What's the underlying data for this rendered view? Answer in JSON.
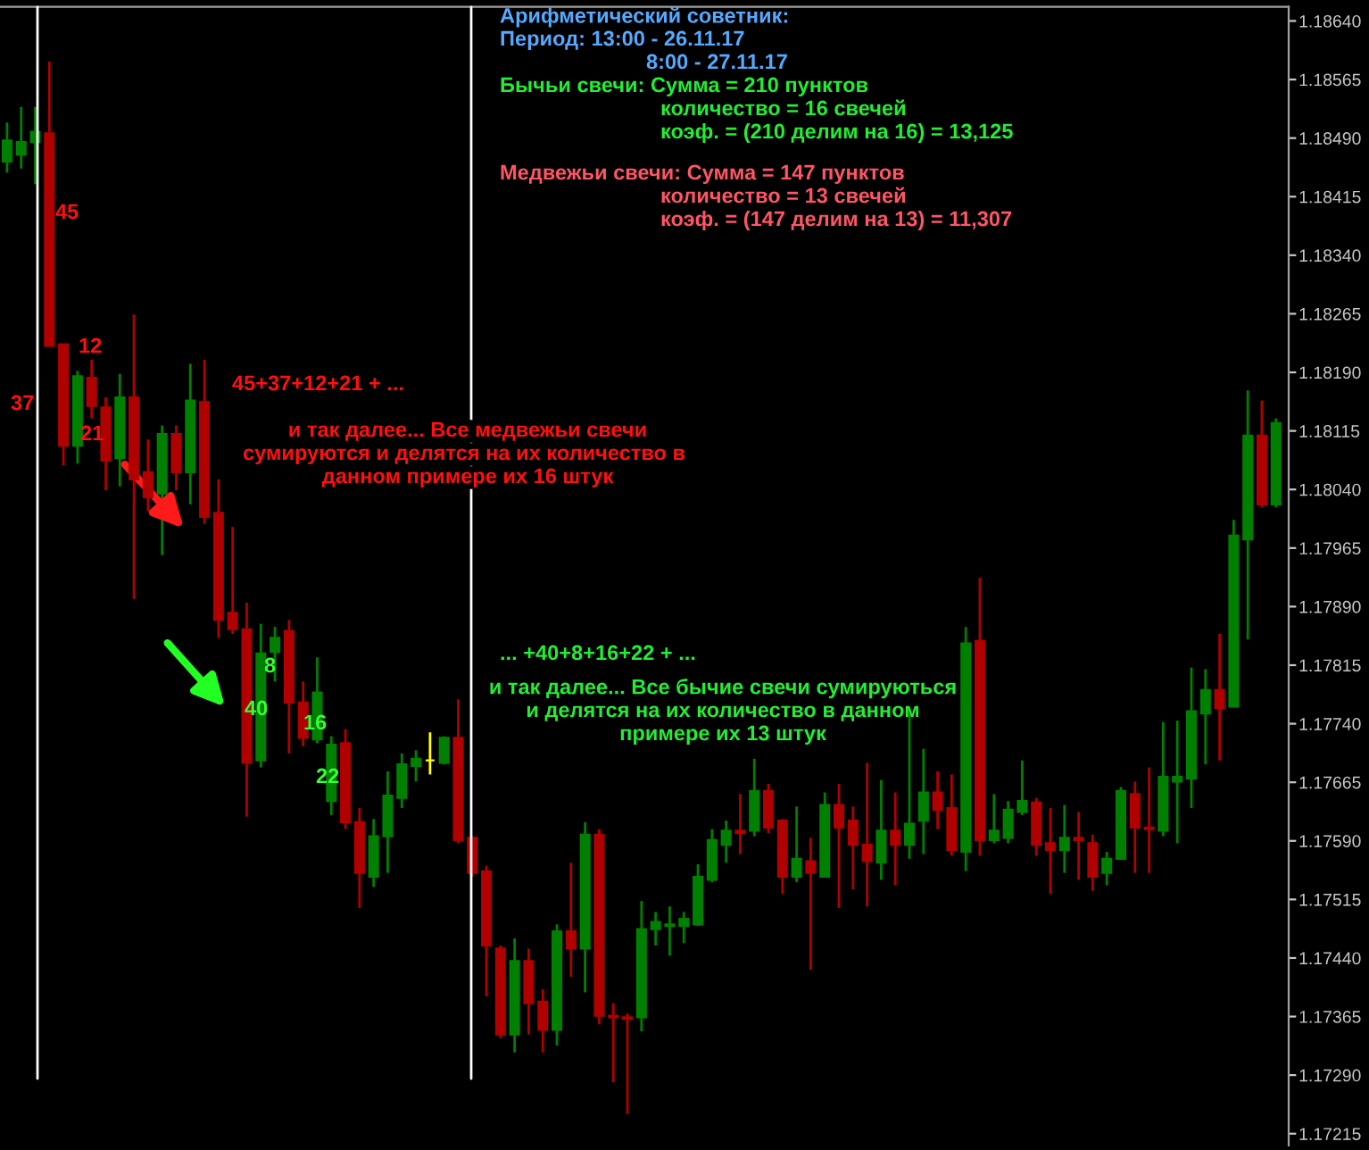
{
  "chart_data": {
    "type": "candlestick",
    "categories": [
      null,
      null,
      null,
      null,
      null,
      null,
      null,
      null,
      null,
      null,
      null,
      null,
      null,
      null,
      null,
      null,
      null,
      null,
      null,
      null,
      null,
      null,
      null,
      null,
      null,
      null,
      null,
      null,
      null,
      null,
      null,
      null,
      null,
      null,
      null,
      null,
      null,
      null,
      null,
      null,
      null,
      null,
      null,
      null,
      null,
      null,
      null,
      null,
      null,
      null,
      null,
      null,
      null,
      null,
      null,
      null,
      null,
      null,
      null,
      null,
      null,
      null,
      null,
      null,
      null,
      null,
      null,
      null,
      null,
      null,
      null,
      null,
      null,
      null,
      null,
      null,
      null,
      null,
      null,
      null,
      null,
      null,
      null,
      null,
      null,
      null,
      null,
      null,
      null,
      null,
      null
    ],
    "ohlc": [
      [
        1.1846,
        1.1851,
        1.18446,
        1.18487
      ],
      [
        1.18469,
        1.1853,
        1.18451,
        1.18485
      ],
      [
        1.18485,
        1.1853,
        1.18431,
        1.18498
      ],
      [
        1.18496,
        1.18588,
        1.18224,
        1.18224
      ],
      [
        1.18226,
        1.18226,
        1.18071,
        1.18096
      ],
      [
        1.18096,
        1.18192,
        1.18073,
        1.18185
      ],
      [
        1.18183,
        1.18206,
        1.18131,
        1.18147
      ],
      [
        1.18145,
        1.18158,
        1.18039,
        1.18077
      ],
      [
        1.1808,
        1.18188,
        1.18044,
        1.18158
      ],
      [
        1.18158,
        1.18264,
        1.179,
        1.18053
      ],
      [
        1.18062,
        1.18104,
        1.18012,
        1.1803
      ],
      [
        1.18035,
        1.18122,
        1.17956,
        1.18111
      ],
      [
        1.18111,
        1.18122,
        1.18039,
        1.18062
      ],
      [
        1.18062,
        1.18201,
        1.18021,
        1.18154
      ],
      [
        1.18152,
        1.18206,
        1.17996,
        1.18005
      ],
      [
        1.1801,
        1.18053,
        1.1785,
        1.17873
      ],
      [
        1.17882,
        1.17992,
        1.17855,
        1.17861
      ],
      [
        1.17861,
        1.17895,
        1.17621,
        1.1769
      ],
      [
        1.17693,
        1.17868,
        1.17684,
        1.1783
      ],
      [
        1.17832,
        1.17864,
        1.17794,
        1.1785
      ],
      [
        1.17859,
        1.17873,
        1.17702,
        1.17767
      ],
      [
        1.17767,
        1.17794,
        1.17711,
        1.17722
      ],
      [
        1.1772,
        1.17825,
        1.17715,
        1.1778
      ],
      [
        1.17641,
        1.17724,
        1.17623,
        1.17713
      ],
      [
        1.17715,
        1.17733,
        1.17605,
        1.17614
      ],
      [
        1.17614,
        1.17632,
        1.17504,
        1.17549
      ],
      [
        1.17544,
        1.17618,
        1.17531,
        1.17596
      ],
      [
        1.17596,
        1.17679,
        1.17549,
        1.17648
      ],
      [
        1.17645,
        1.17702,
        1.17632,
        1.17688
      ],
      [
        1.17686,
        1.17706,
        1.17666,
        1.17695
      ],
      [
        1.17693,
        1.17729,
        1.17675,
        1.17693
      ],
      [
        1.1769,
        1.17724,
        1.17688,
        1.17722
      ],
      [
        1.17722,
        1.17771,
        1.17587,
        1.17591
      ],
      [
        1.17594,
        1.17596,
        1.17544,
        1.17549
      ],
      [
        1.17551,
        1.17558,
        1.17391,
        1.17456
      ],
      [
        1.17452,
        1.17456,
        1.17337,
        1.17342
      ],
      [
        1.17342,
        1.17465,
        1.17319,
        1.17436
      ],
      [
        1.17436,
        1.17452,
        1.17342,
        1.17382
      ],
      [
        1.17384,
        1.174,
        1.17319,
        1.17348
      ],
      [
        1.17348,
        1.17483,
        1.17328,
        1.17474
      ],
      [
        1.17474,
        1.17562,
        1.17416,
        1.17452
      ],
      [
        1.17452,
        1.17614,
        1.17396,
        1.17598
      ],
      [
        1.17598,
        1.17605,
        1.17355,
        1.17366
      ],
      [
        1.17366,
        1.17382,
        1.17281,
        1.17364
      ],
      [
        1.17364,
        1.17369,
        1.1724,
        1.17362
      ],
      [
        1.17364,
        1.17513,
        1.17346,
        1.17477
      ],
      [
        1.17477,
        1.17499,
        1.17456,
        1.17486
      ],
      [
        1.17481,
        1.17506,
        1.17443,
        1.17483
      ],
      [
        1.17481,
        1.17499,
        1.17459,
        1.1749
      ],
      [
        1.17483,
        1.1756,
        1.17481,
        1.17544
      ],
      [
        1.1754,
        1.17605,
        1.17537,
        1.17591
      ],
      [
        1.17585,
        1.17616,
        1.17562,
        1.17603
      ],
      [
        1.17603,
        1.1765,
        1.17573,
        1.176
      ],
      [
        1.17603,
        1.17695,
        1.17596,
        1.17654
      ],
      [
        1.17654,
        1.17663,
        1.176,
        1.17607
      ],
      [
        1.17616,
        1.17618,
        1.17522,
        1.17544
      ],
      [
        1.17544,
        1.17634,
        1.17537,
        1.17567
      ],
      [
        1.17564,
        1.17594,
        1.17425,
        1.17549
      ],
      [
        1.17544,
        1.17652,
        1.17544,
        1.17636
      ],
      [
        1.17636,
        1.17663,
        1.17504,
        1.17607
      ],
      [
        1.17616,
        1.17634,
        1.17528,
        1.17585
      ],
      [
        1.17585,
        1.1769,
        1.17506,
        1.17564
      ],
      [
        1.17562,
        1.17668,
        1.1754,
        1.17603
      ],
      [
        1.17603,
        1.17652,
        1.17533,
        1.17585
      ],
      [
        1.17585,
        1.17758,
        1.17567,
        1.17612
      ],
      [
        1.17616,
        1.17708,
        1.17573,
        1.17652
      ],
      [
        1.17652,
        1.17679,
        1.17605,
        1.1763
      ],
      [
        1.17632,
        1.17675,
        1.17571,
        1.17578
      ],
      [
        1.17576,
        1.17864,
        1.17551,
        1.17843
      ],
      [
        1.17846,
        1.17927,
        1.17571,
        1.17591
      ],
      [
        1.17591,
        1.1765,
        1.17587,
        1.17603
      ],
      [
        1.17594,
        1.17641,
        1.17587,
        1.1763
      ],
      [
        1.17627,
        1.17693,
        1.17623,
        1.17641
      ],
      [
        1.17639,
        1.17645,
        1.17571,
        1.17585
      ],
      [
        1.17587,
        1.17632,
        1.17522,
        1.17578
      ],
      [
        1.17578,
        1.17636,
        1.17549,
        1.17594
      ],
      [
        1.17594,
        1.17627,
        1.1754,
        1.17591
      ],
      [
        1.17587,
        1.17598,
        1.17526,
        1.17544
      ],
      [
        1.17549,
        1.17576,
        1.17533,
        1.17567
      ],
      [
        1.17567,
        1.17659,
        1.17567,
        1.17654
      ],
      [
        1.1765,
        1.17666,
        1.17549,
        1.17607
      ],
      [
        1.17607,
        1.17684,
        1.17549,
        1.17605
      ],
      [
        1.17603,
        1.17742,
        1.17596,
        1.17672
      ],
      [
        1.17666,
        1.17744,
        1.17587,
        1.17672
      ],
      [
        1.1767,
        1.17812,
        1.17632,
        1.17756
      ],
      [
        1.17753,
        1.1781,
        1.17688,
        1.17783
      ],
      [
        1.17783,
        1.17855,
        1.17693,
        1.1776
      ],
      [
        1.17762,
        1.18001,
        1.17762,
        1.17981
      ],
      [
        1.17976,
        1.18167,
        1.17848,
        1.18109
      ],
      [
        1.18109,
        1.18154,
        1.18017,
        1.18021
      ],
      [
        1.18021,
        1.18131,
        1.18017,
        1.18125
      ]
    ],
    "colors": [
      "#008000",
      "#008000",
      "#008000",
      "#b00000",
      "#b00000",
      "#008000",
      "#b00000",
      "#b00000",
      "#008000",
      "#b00000",
      "#b00000",
      "#008000",
      "#b00000",
      "#008000",
      "#b00000",
      "#b00000",
      "#b00000",
      "#b00000",
      "#008000",
      "#008000",
      "#b00000",
      "#b00000",
      "#008000",
      "#008000",
      "#b00000",
      "#b00000",
      "#008000",
      "#008000",
      "#008000",
      "#008000",
      "#ffff00",
      "#008000",
      "#b00000",
      "#b00000",
      "#b00000",
      "#b00000",
      "#008000",
      "#b00000",
      "#b00000",
      "#008000",
      "#b00000",
      "#008000",
      "#b00000",
      "#b00000",
      "#b00000",
      "#008000",
      "#008000",
      "#008000",
      "#008000",
      "#008000",
      "#008000",
      "#008000",
      "#b00000",
      "#008000",
      "#b00000",
      "#b00000",
      "#008000",
      "#b00000",
      "#008000",
      "#b00000",
      "#b00000",
      "#b00000",
      "#008000",
      "#b00000",
      "#008000",
      "#008000",
      "#b00000",
      "#b00000",
      "#008000",
      "#b00000",
      "#008000",
      "#008000",
      "#008000",
      "#b00000",
      "#b00000",
      "#008000",
      "#b00000",
      "#b00000",
      "#008000",
      "#008000",
      "#b00000",
      "#b00000",
      "#008000",
      "#008000",
      "#008000",
      "#008000",
      "#b00000",
      "#008000",
      "#008000",
      "#b00000",
      "#008000"
    ],
    "ylim": [
      1.172,
      1.18658
    ],
    "yticks": [
      {
        "value": 1.17215,
        "label": "1.17215"
      },
      {
        "value": 1.1729,
        "label": "1.17290"
      },
      {
        "value": 1.17365,
        "label": "1.17365"
      },
      {
        "value": 1.1744,
        "label": "1.17440"
      },
      {
        "value": 1.17515,
        "label": "1.17515"
      },
      {
        "value": 1.1759,
        "label": "1.17590"
      },
      {
        "value": 1.17665,
        "label": "1.17665"
      },
      {
        "value": 1.1774,
        "label": "1.17740"
      },
      {
        "value": 1.17815,
        "label": "1.17815"
      },
      {
        "value": 1.1789,
        "label": "1.17890"
      },
      {
        "value": 1.17965,
        "label": "1.17965"
      },
      {
        "value": 1.1804,
        "label": "1.18040"
      },
      {
        "value": 1.18115,
        "label": "1.18115"
      },
      {
        "value": 1.1819,
        "label": "1.18190"
      },
      {
        "value": 1.18265,
        "label": "1.18265"
      },
      {
        "value": 1.1834,
        "label": "1.18340"
      },
      {
        "value": 1.18415,
        "label": "1.18415"
      },
      {
        "value": 1.1849,
        "label": "1.18490"
      },
      {
        "value": 1.18565,
        "label": "1.18565"
      },
      {
        "value": 1.1864,
        "label": "1.18640"
      }
    ],
    "annotations": [
      "Арифметический советник:",
      "Период: 13:00 - 26.11.17",
      "8:00 - 27.11.17",
      "Бычьи свечи: Сумма = 210 пунктов",
      "количество = 16 свечей",
      "коэф. = (210 делим на 16) = 13,125",
      "Медвежьи свечи: Сумма = 147 пунктов",
      "количество = 13 свечей",
      "коэф. = (147 делим на 13) = 11,307",
      "45+37+12+21 + ...",
      "и так далее... Все медвежьи свечи",
      "сумируются и делятся на их количество в",
      "данном примере их 16 штук",
      "... +40+8+16+22 + ...",
      "и так далее... Все бычие свечи сумируються",
      "и делятся на их количество в данном",
      "примере их 13 штук",
      "45",
      "12",
      "37",
      "21",
      "8",
      "40",
      "16",
      "22"
    ]
  }
}
